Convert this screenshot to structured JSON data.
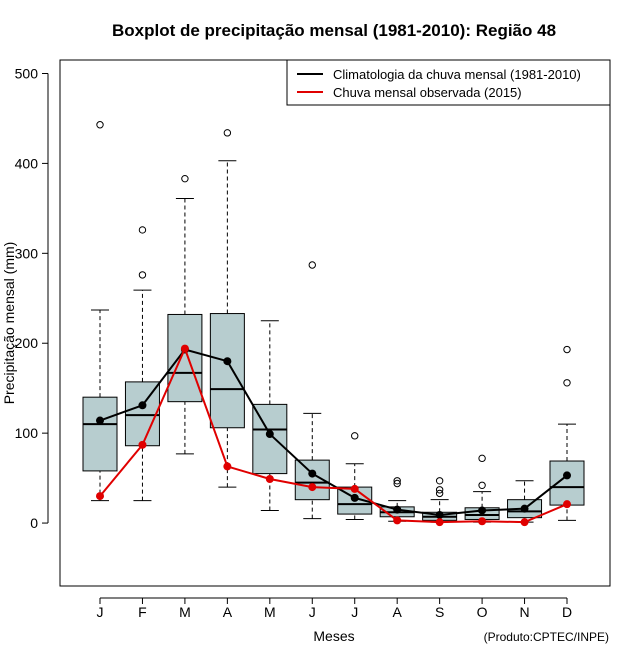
{
  "chart_data": {
    "type": "boxplot",
    "title": "Boxplot de precipitação mensal (1981-2010): Região 48",
    "xlabel": "Meses",
    "ylabel": "Precipitação mensal (mm)",
    "credit": "(Produto:CPTEC/INPE)",
    "ylim": [
      -70,
      515
    ],
    "yticks": [
      0,
      100,
      200,
      300,
      400,
      500
    ],
    "categories": [
      "J",
      "F",
      "M",
      "A",
      "M",
      "J",
      "J",
      "A",
      "S",
      "O",
      "N",
      "D"
    ],
    "box_color": "#b7cdcf",
    "boxes": [
      {
        "whisker_low": 25,
        "q1": 58,
        "median": 110,
        "q3": 140,
        "whisker_high": 237,
        "outliers": [
          443
        ]
      },
      {
        "whisker_low": 25,
        "q1": 86,
        "median": 120,
        "q3": 157,
        "whisker_high": 259,
        "outliers": [
          276,
          326
        ]
      },
      {
        "whisker_low": 77,
        "q1": 135,
        "median": 167,
        "q3": 232,
        "whisker_high": 361,
        "outliers": [
          383
        ]
      },
      {
        "whisker_low": 40,
        "q1": 106,
        "median": 149,
        "q3": 233,
        "whisker_high": 403,
        "outliers": [
          434
        ]
      },
      {
        "whisker_low": 14,
        "q1": 55,
        "median": 104,
        "q3": 132,
        "whisker_high": 225,
        "outliers": []
      },
      {
        "whisker_low": 5,
        "q1": 26,
        "median": 45,
        "q3": 70,
        "whisker_high": 122,
        "outliers": [
          287
        ]
      },
      {
        "whisker_low": 4,
        "q1": 10,
        "median": 21,
        "q3": 40,
        "whisker_high": 66,
        "outliers": [
          97
        ]
      },
      {
        "whisker_low": 2,
        "q1": 7,
        "median": 12,
        "q3": 18,
        "whisker_high": 25,
        "outliers": [
          44,
          47
        ]
      },
      {
        "whisker_low": 1,
        "q1": 3,
        "median": 7,
        "q3": 12,
        "whisker_high": 26,
        "outliers": [
          33,
          37,
          47
        ]
      },
      {
        "whisker_low": 1,
        "q1": 4,
        "median": 9,
        "q3": 17,
        "whisker_high": 35,
        "outliers": [
          42,
          72
        ]
      },
      {
        "whisker_low": 1,
        "q1": 6,
        "median": 13,
        "q3": 26,
        "whisker_high": 47,
        "outliers": []
      },
      {
        "whisker_low": 3,
        "q1": 20,
        "median": 40,
        "q3": 69,
        "whisker_high": 110,
        "outliers": [
          156,
          193
        ]
      }
    ],
    "series": [
      {
        "name": "Climatologia da chuva mensal (1981-2010)",
        "color": "#000000",
        "values": [
          114,
          131,
          193,
          180,
          99,
          55,
          28,
          15,
          9,
          14,
          16,
          53
        ]
      },
      {
        "name": "Chuva mensal observada (2015)",
        "color": "#e00000",
        "values": [
          30,
          87,
          194,
          63,
          49,
          40,
          38,
          3,
          1,
          2,
          1,
          21
        ]
      }
    ],
    "legend_position": "top-right"
  }
}
